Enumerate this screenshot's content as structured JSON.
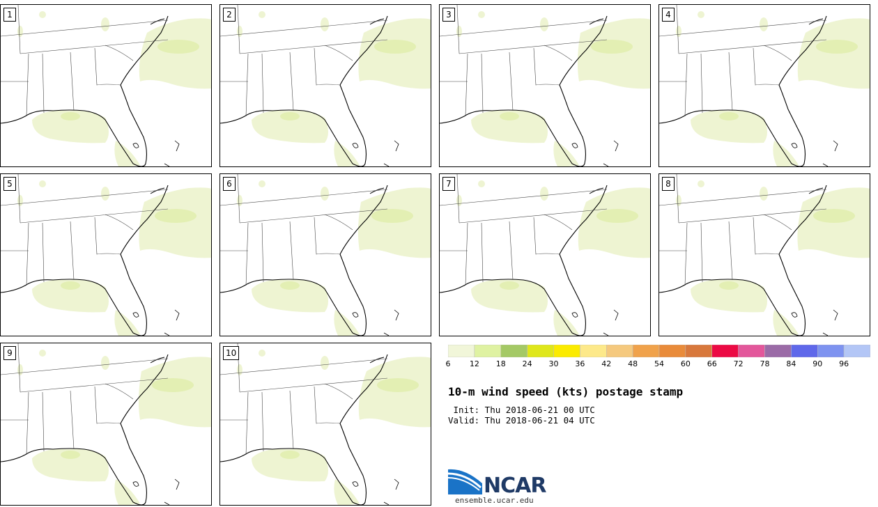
{
  "panels": [
    {
      "label": "1"
    },
    {
      "label": "2"
    },
    {
      "label": "3"
    },
    {
      "label": "4"
    },
    {
      "label": "5"
    },
    {
      "label": "6"
    },
    {
      "label": "7"
    },
    {
      "label": "8"
    },
    {
      "label": "9"
    },
    {
      "label": "10"
    }
  ],
  "colorbar": {
    "colors": [
      "#f1f6d9",
      "#dff2a2",
      "#a4c965",
      "#dfe71b",
      "#fbeb00",
      "#fde98a",
      "#f5c97e",
      "#f0a24b",
      "#e98b3a",
      "#d8783c",
      "#ec0a44",
      "#e3579b",
      "#9b6ba7",
      "#5f68ea",
      "#7e93f0",
      "#b3c6f6"
    ],
    "ticks": [
      "6",
      "12",
      "18",
      "24",
      "30",
      "36",
      "42",
      "48",
      "54",
      "60",
      "66",
      "72",
      "78",
      "84",
      "90",
      "96"
    ]
  },
  "title": "10-m wind speed (kts) postage stamp",
  "init": " Init: Thu 2018-06-21 00 UTC",
  "valid": "Valid: Thu 2018-06-21 04 UTC",
  "logo": {
    "text": "NCAR",
    "url": "ensemble.ucar.edu",
    "color": "#1f3a66",
    "swoosh": "#1a73c7"
  }
}
